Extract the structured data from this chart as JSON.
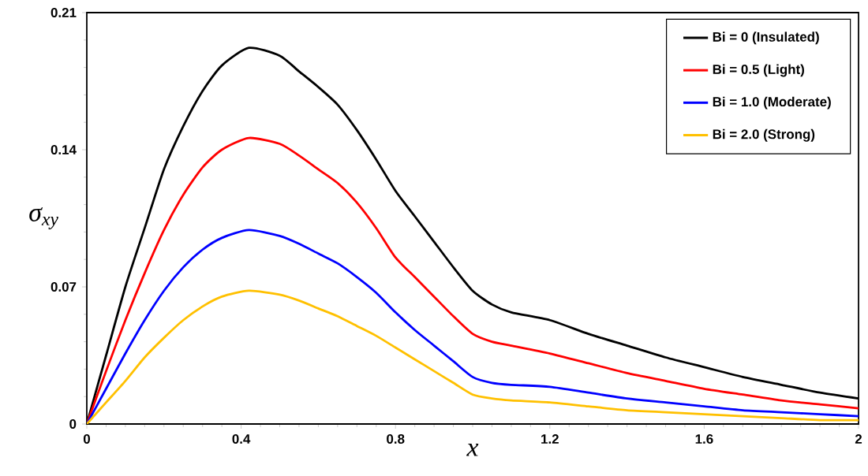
{
  "chart_data": {
    "type": "line",
    "xlabel": "x",
    "ylabel": "σ$_{xy}$",
    "x": [
      0,
      0.05,
      0.1,
      0.15,
      0.2,
      0.25,
      0.3,
      0.35,
      0.42,
      0.5,
      0.55,
      0.6,
      0.65,
      0.7,
      0.75,
      0.8,
      0.85,
      0.9,
      0.95,
      1.0,
      1.05,
      1.1,
      1.2,
      1.3,
      1.4,
      1.5,
      1.6,
      1.7,
      1.8,
      1.9,
      2.0
    ],
    "series": [
      {
        "name": "Bi = 0 (Insulated)",
        "color": "#000000",
        "values": [
          0,
          0.035,
          0.07,
          0.1,
          0.13,
          0.152,
          0.17,
          0.183,
          0.192,
          0.188,
          0.18,
          0.172,
          0.163,
          0.15,
          0.135,
          0.119,
          0.106,
          0.093,
          0.08,
          0.068,
          0.061,
          0.057,
          0.053,
          0.046,
          0.04,
          0.034,
          0.029,
          0.024,
          0.02,
          0.016,
          0.013
        ]
      },
      {
        "name": "Bi = 0.5 (Light)",
        "color": "#ff0000",
        "values": [
          0,
          0.027,
          0.053,
          0.077,
          0.099,
          0.117,
          0.131,
          0.14,
          0.146,
          0.143,
          0.137,
          0.13,
          0.123,
          0.113,
          0.1,
          0.085,
          0.075,
          0.065,
          0.055,
          0.046,
          0.042,
          0.04,
          0.036,
          0.031,
          0.026,
          0.022,
          0.018,
          0.015,
          0.012,
          0.01,
          0.008
        ]
      },
      {
        "name": "Bi = 1.0 (Moderate)",
        "color": "#0000ff",
        "values": [
          0,
          0.018,
          0.036,
          0.053,
          0.068,
          0.08,
          0.089,
          0.095,
          0.099,
          0.096,
          0.092,
          0.087,
          0.082,
          0.075,
          0.067,
          0.057,
          0.048,
          0.04,
          0.032,
          0.024,
          0.021,
          0.02,
          0.019,
          0.016,
          0.013,
          0.011,
          0.009,
          0.007,
          0.006,
          0.005,
          0.004
        ]
      },
      {
        "name": "Bi = 2.0 (Strong)",
        "color": "#ffc000",
        "values": [
          0,
          0.011,
          0.022,
          0.034,
          0.044,
          0.053,
          0.06,
          0.065,
          0.068,
          0.066,
          0.063,
          0.059,
          0.055,
          0.05,
          0.045,
          0.039,
          0.033,
          0.027,
          0.021,
          0.015,
          0.013,
          0.012,
          0.011,
          0.009,
          0.007,
          0.006,
          0.005,
          0.004,
          0.003,
          0.002,
          0.002
        ]
      }
    ],
    "xlim": [
      0,
      2
    ],
    "xticks": [
      0,
      0.4,
      0.8,
      1.2,
      1.6,
      2
    ],
    "ylim": [
      0,
      0.21
    ],
    "yticks": [
      0,
      0.07,
      0.14,
      0.21
    ],
    "legend": "top right",
    "grid": false,
    "line_style": "solid",
    "marker": "none"
  }
}
